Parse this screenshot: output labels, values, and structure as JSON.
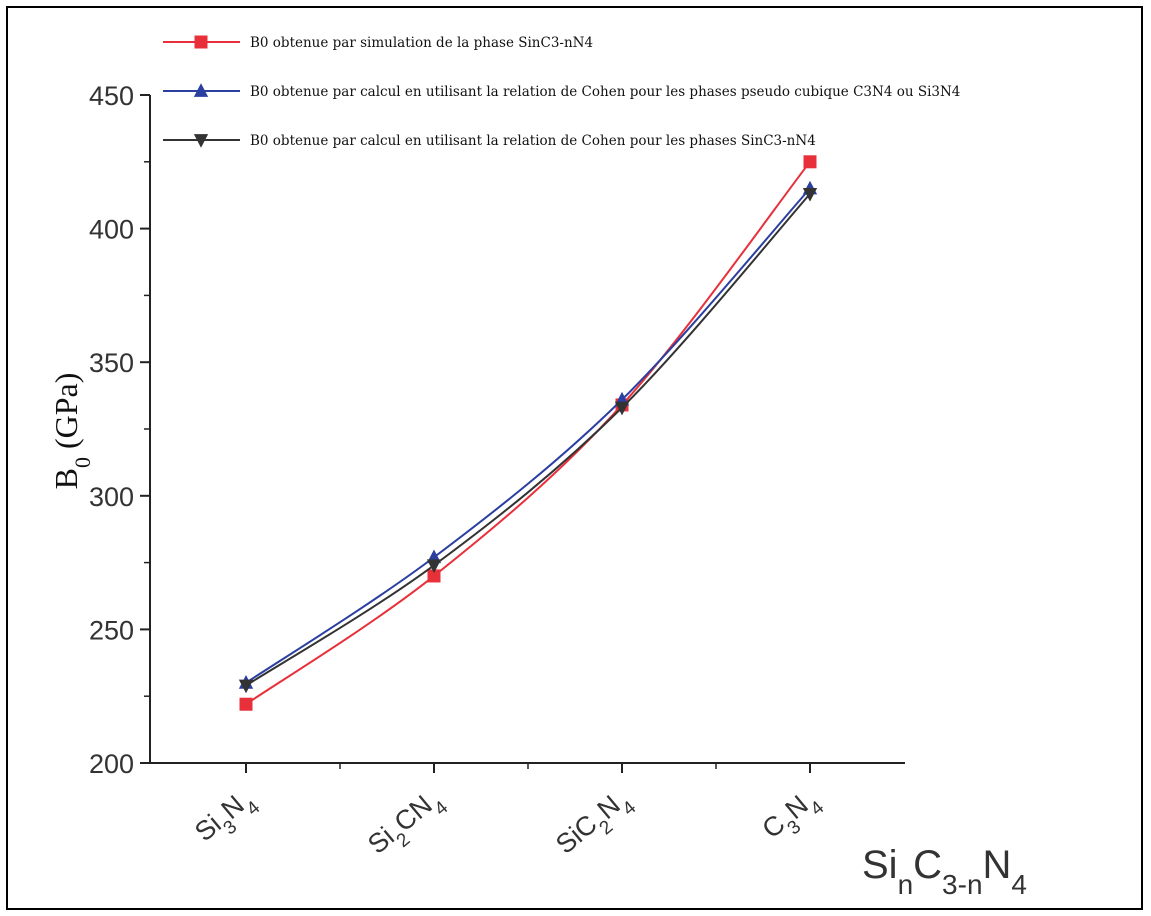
{
  "chart_data": {
    "type": "line",
    "ylabel_main": "B",
    "ylabel_sub": "0",
    "ylabel_unit": " (GPa)",
    "xlabel_parts": [
      {
        "t": "Si",
        "sub": false
      },
      {
        "t": "n",
        "sub": true
      },
      {
        "t": "C",
        "sub": false
      },
      {
        "t": "3-n",
        "sub": true
      },
      {
        "t": "N",
        "sub": false
      },
      {
        "t": "4",
        "sub": true
      }
    ],
    "ylim": [
      200,
      450
    ],
    "yticks": [
      200,
      250,
      300,
      350,
      400,
      450
    ],
    "categories": [
      [
        {
          "t": "Si",
          "sub": false
        },
        {
          "t": "3",
          "sub": true
        },
        {
          "t": "N",
          "sub": false
        },
        {
          "t": "4",
          "sub": true
        }
      ],
      [
        {
          "t": "Si",
          "sub": false
        },
        {
          "t": "2",
          "sub": true
        },
        {
          "t": "CN",
          "sub": false
        },
        {
          "t": "4",
          "sub": true
        }
      ],
      [
        {
          "t": "SiC",
          "sub": false
        },
        {
          "t": "2",
          "sub": true
        },
        {
          "t": "N",
          "sub": false
        },
        {
          "t": "4",
          "sub": true
        }
      ],
      [
        {
          "t": "C",
          "sub": false
        },
        {
          "t": "3",
          "sub": true
        },
        {
          "t": "N",
          "sub": false
        },
        {
          "t": "4",
          "sub": true
        }
      ]
    ],
    "series": [
      {
        "name": "B0 obtenue par simulation de la phase SinC3-nN4",
        "marker": "square",
        "color": "#e8303a",
        "values": [
          222,
          270,
          334,
          425
        ]
      },
      {
        "name": "B0 obtenue par calcul en utilisant la relation de Cohen pour les phases pseudo cubique C3N4 ou Si3N4",
        "marker": "triangle-up",
        "color": "#2b3fa0",
        "values": [
          230,
          277,
          336,
          415
        ]
      },
      {
        "name": "B0 obtenue par calcul en utilisant la relation de Cohen pour les phases SinC3-nN4",
        "marker": "triangle-down",
        "color": "#333333",
        "values": [
          229,
          274,
          333,
          413
        ]
      }
    ],
    "legend_position": "top",
    "grid": false
  }
}
